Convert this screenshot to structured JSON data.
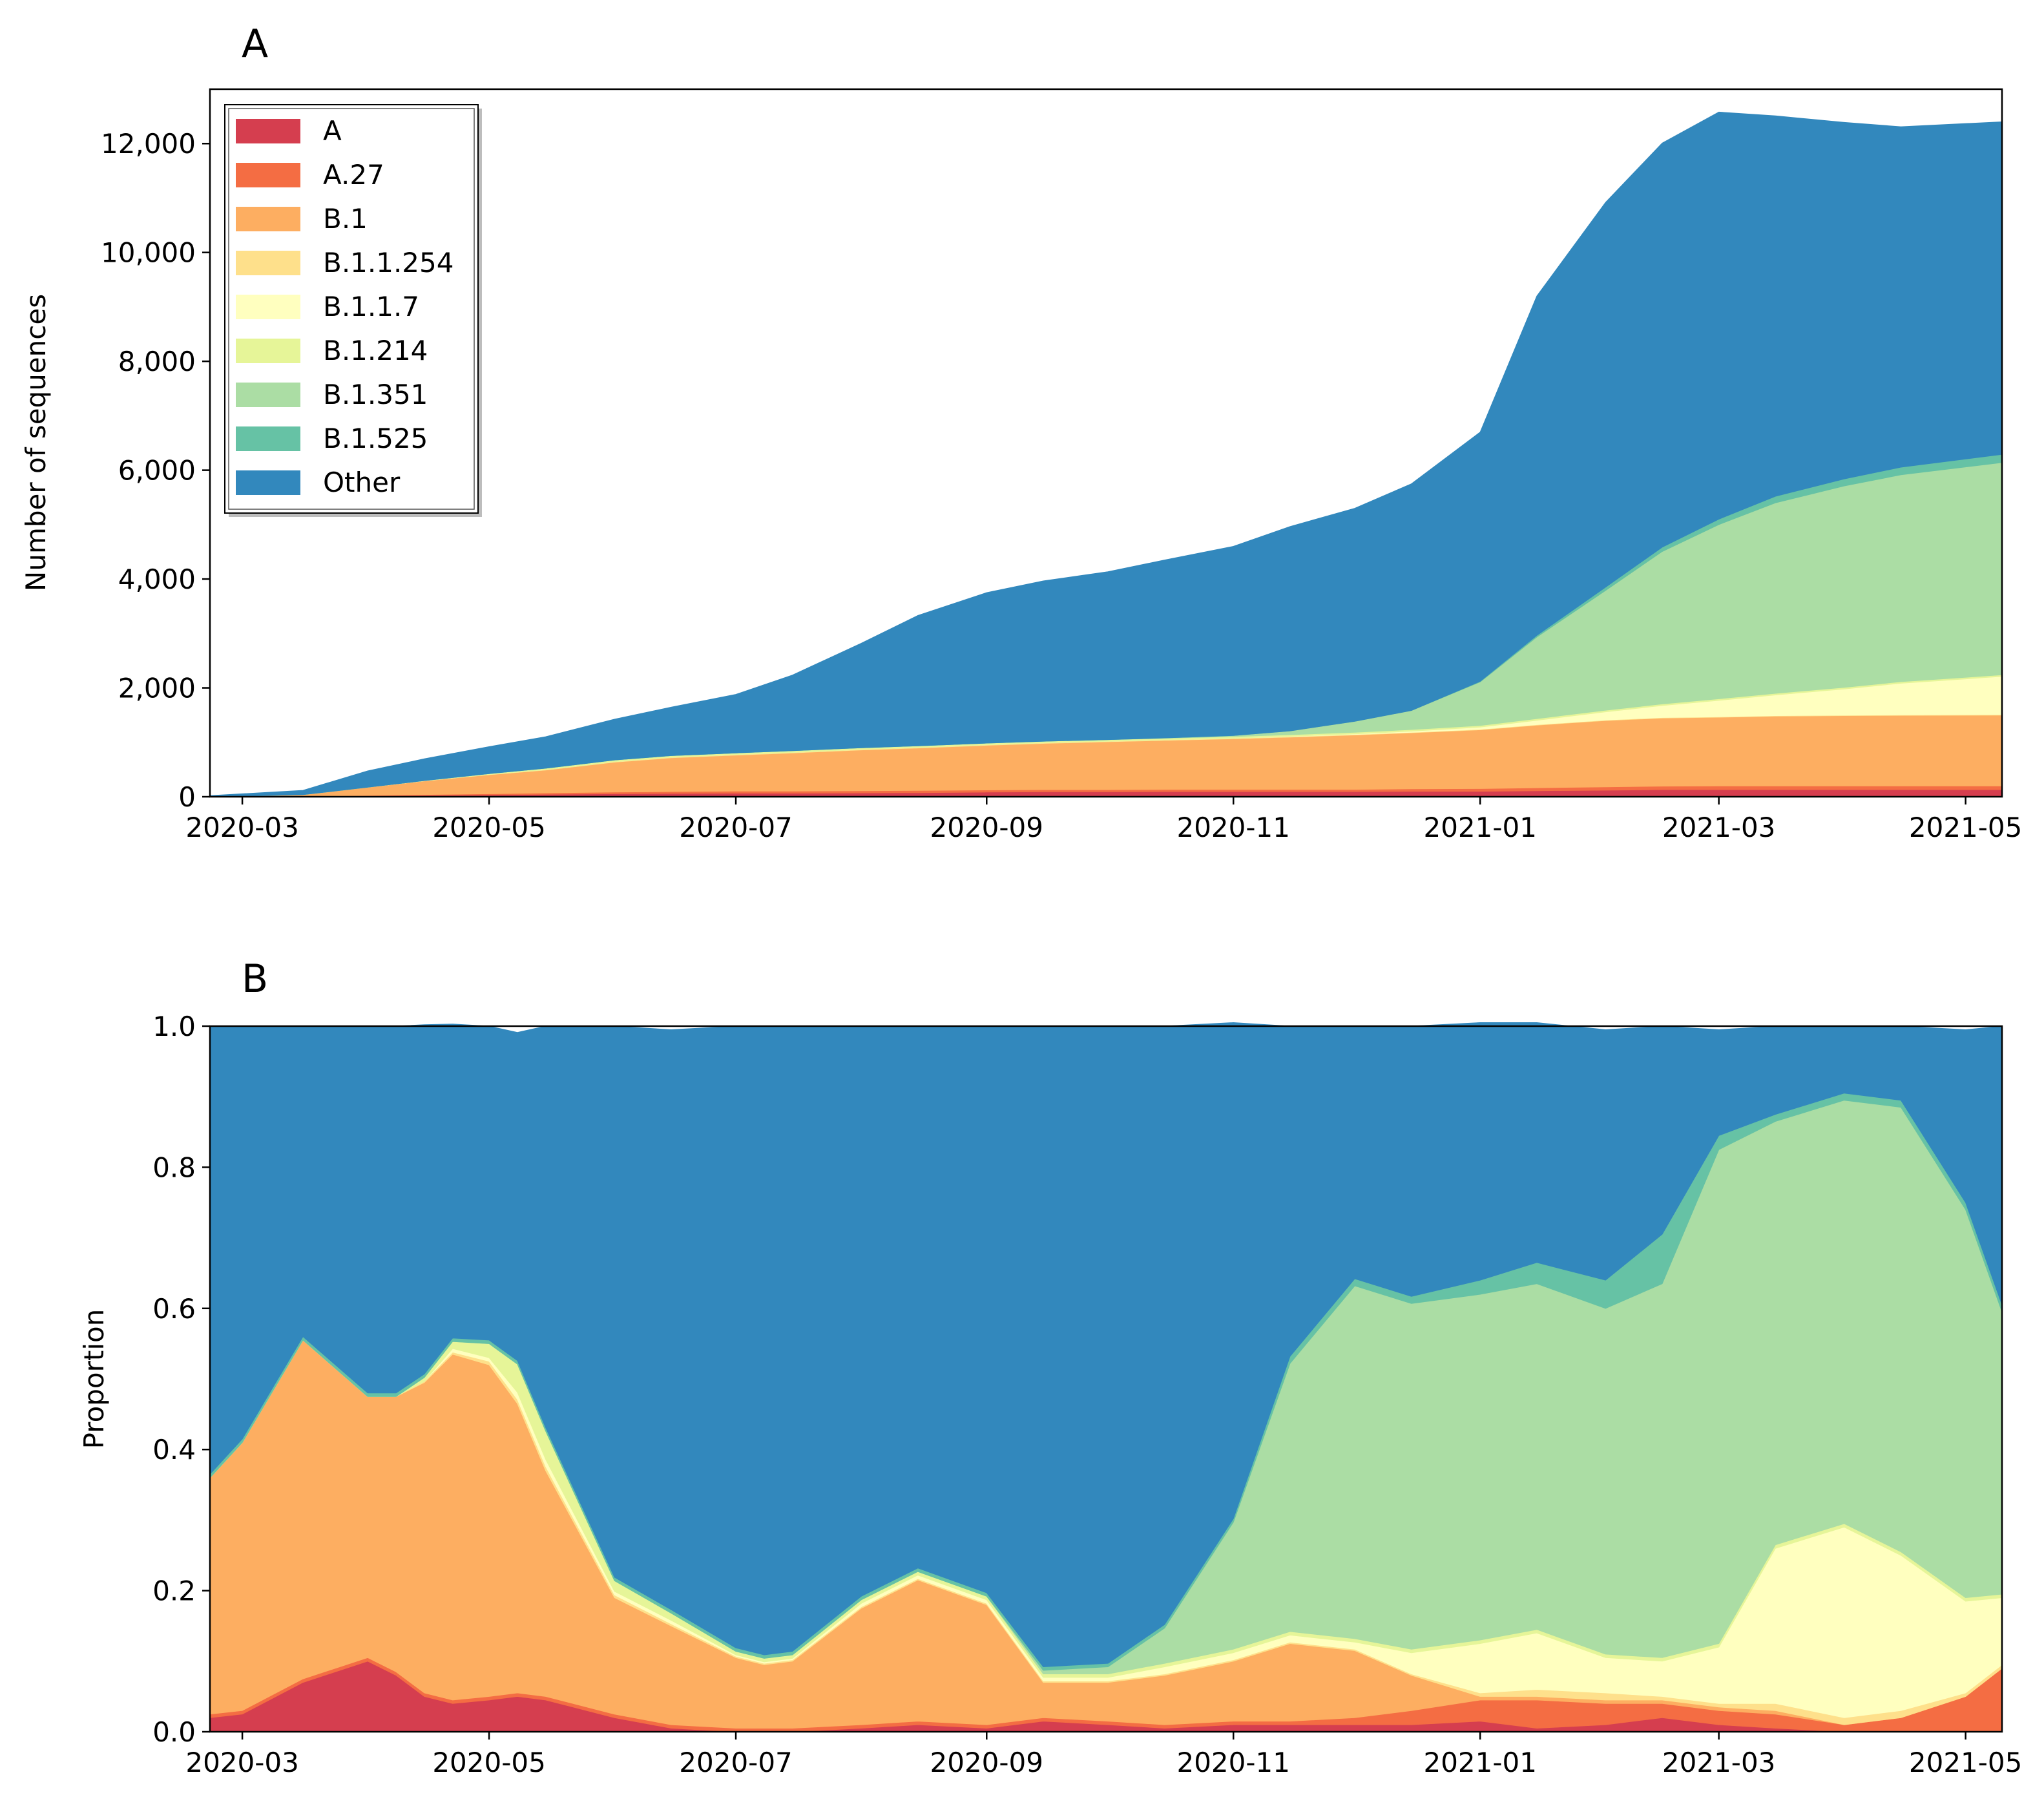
{
  "chart_data": [
    {
      "panel": "A",
      "type": "area",
      "stacked": true,
      "ylabel": "Number of sequences",
      "ylim": [
        0,
        13000
      ],
      "yticks": [
        0,
        2000,
        4000,
        6000,
        8000,
        10000,
        12000
      ],
      "ytick_labels": [
        "0",
        "2,000",
        "4,000",
        "6,000",
        "8,000",
        "10,000",
        "12,000"
      ],
      "xlim": [
        "2020-02-22",
        "2021-05-10"
      ],
      "xticks": [
        "2020-03-01",
        "2020-05-01",
        "2020-07-01",
        "2020-09-01",
        "2020-11-01",
        "2021-01-01",
        "2021-03-01",
        "2021-05-01"
      ],
      "xtick_labels": [
        "2020-03",
        "2020-05",
        "2020-07",
        "2020-09",
        "2020-11",
        "2021-01",
        "2021-03",
        "2021-05"
      ],
      "legend_position": "top-left",
      "x": [
        "2020-02-22",
        "2020-03-16",
        "2020-04-01",
        "2020-04-15",
        "2020-05-01",
        "2020-05-15",
        "2020-06-01",
        "2020-06-15",
        "2020-07-01",
        "2020-07-15",
        "2020-08-01",
        "2020-08-15",
        "2020-09-01",
        "2020-09-15",
        "2020-10-01",
        "2020-10-15",
        "2020-11-01",
        "2020-11-15",
        "2020-12-01",
        "2020-12-15",
        "2021-01-01",
        "2021-01-15",
        "2021-02-01",
        "2021-02-15",
        "2021-03-01",
        "2021-03-15",
        "2021-04-01",
        "2021-04-15",
        "2021-05-10"
      ],
      "series": [
        {
          "name": "A",
          "color": "#d53e4f",
          "values": [
            0,
            5,
            15,
            25,
            35,
            45,
            55,
            60,
            65,
            65,
            70,
            75,
            85,
            90,
            90,
            95,
            95,
            95,
            95,
            100,
            100,
            110,
            120,
            130,
            130,
            130,
            130,
            130,
            130
          ]
        },
        {
          "name": "A.27",
          "color": "#f46d43",
          "values": [
            0,
            3,
            10,
            15,
            20,
            25,
            30,
            35,
            40,
            40,
            40,
            40,
            40,
            40,
            40,
            40,
            40,
            40,
            40,
            45,
            50,
            55,
            60,
            65,
            70,
            70,
            70,
            70,
            70
          ]
        },
        {
          "name": "B.1",
          "color": "#fdae61",
          "values": [
            0,
            30,
            150,
            250,
            350,
            420,
            550,
            620,
            660,
            700,
            750,
            780,
            820,
            850,
            880,
            900,
            930,
            960,
            1000,
            1030,
            1080,
            1150,
            1220,
            1250,
            1260,
            1280,
            1290,
            1295,
            1300
          ]
        },
        {
          "name": "B.1.1.254",
          "color": "#fee08b",
          "values": [
            0,
            0,
            0,
            2,
            5,
            8,
            10,
            10,
            10,
            10,
            10,
            10,
            10,
            10,
            10,
            10,
            10,
            10,
            10,
            10,
            10,
            10,
            10,
            10,
            10,
            10,
            10,
            10,
            10
          ]
        },
        {
          "name": "B.1.1.7",
          "color": "#ffffbf",
          "values": [
            0,
            0,
            0,
            0,
            0,
            0,
            0,
            0,
            0,
            0,
            0,
            0,
            0,
            0,
            0,
            0,
            0,
            5,
            10,
            20,
            40,
            80,
            150,
            220,
            300,
            380,
            480,
            580,
            700
          ]
        },
        {
          "name": "B.1.214",
          "color": "#e6f598",
          "values": [
            0,
            0,
            0,
            5,
            15,
            25,
            30,
            30,
            30,
            30,
            30,
            30,
            30,
            30,
            30,
            30,
            30,
            30,
            30,
            30,
            30,
            30,
            30,
            30,
            30,
            30,
            30,
            30,
            30
          ]
        },
        {
          "name": "B.1.351",
          "color": "#abdda4",
          "values": [
            0,
            0,
            0,
            0,
            0,
            0,
            0,
            0,
            0,
            0,
            0,
            0,
            0,
            0,
            0,
            5,
            20,
            70,
            200,
            350,
            800,
            1500,
            2200,
            2800,
            3200,
            3500,
            3700,
            3800,
            3900
          ]
        },
        {
          "name": "B.1.525",
          "color": "#66c2a5",
          "values": [
            0,
            0,
            0,
            0,
            0,
            0,
            0,
            0,
            0,
            0,
            0,
            0,
            0,
            0,
            0,
            0,
            0,
            0,
            0,
            0,
            10,
            30,
            60,
            80,
            100,
            120,
            130,
            140,
            150
          ]
        },
        {
          "name": "Other",
          "color": "#3288bd",
          "values": [
            20,
            80,
            300,
            400,
            495,
            580,
            750,
            890,
            1075,
            1390,
            1920,
            2395,
            2765,
            2945,
            3085,
            3270,
            3475,
            3755,
            3915,
            4165,
            4580,
            6235,
            7070,
            7425,
            7480,
            6990,
            6550,
            6255,
            6110
          ]
        }
      ]
    },
    {
      "panel": "B",
      "type": "area",
      "stacked": true,
      "ylabel": "Proportion",
      "ylim": [
        0,
        1.0
      ],
      "yticks": [
        0,
        0.2,
        0.4,
        0.6,
        0.8,
        1.0
      ],
      "ytick_labels": [
        "0.0",
        "0.2",
        "0.4",
        "0.6",
        "0.8",
        "1.0"
      ],
      "xlim": [
        "2020-02-22",
        "2021-05-10"
      ],
      "xticks": [
        "2020-03-01",
        "2020-05-01",
        "2020-07-01",
        "2020-09-01",
        "2020-11-01",
        "2021-01-01",
        "2021-03-01",
        "2021-05-01"
      ],
      "xtick_labels": [
        "2020-03",
        "2020-05",
        "2020-07",
        "2020-09",
        "2020-11",
        "2021-01",
        "2021-03",
        "2021-05"
      ],
      "x": [
        "2020-02-22",
        "2020-03-01",
        "2020-03-16",
        "2020-04-01",
        "2020-04-08",
        "2020-04-15",
        "2020-04-22",
        "2020-05-01",
        "2020-05-08",
        "2020-05-15",
        "2020-06-01",
        "2020-06-15",
        "2020-07-01",
        "2020-07-08",
        "2020-07-15",
        "2020-08-01",
        "2020-08-15",
        "2020-09-01",
        "2020-09-15",
        "2020-10-01",
        "2020-10-15",
        "2020-11-01",
        "2020-11-15",
        "2020-12-01",
        "2020-12-15",
        "2021-01-01",
        "2021-01-15",
        "2021-02-01",
        "2021-02-15",
        "2021-03-01",
        "2021-03-15",
        "2021-04-01",
        "2021-04-15",
        "2021-05-01",
        "2021-05-10"
      ],
      "series": [
        {
          "name": "A",
          "color": "#d53e4f",
          "values": [
            0.02,
            0.025,
            0.07,
            0.1,
            0.08,
            0.05,
            0.04,
            0.045,
            0.05,
            0.045,
            0.02,
            0.005,
            0,
            0,
            0,
            0.005,
            0.01,
            0.005,
            0.015,
            0.01,
            0.005,
            0.01,
            0.01,
            0.01,
            0.01,
            0.015,
            0.005,
            0.01,
            0.02,
            0.01,
            0.005,
            0,
            0,
            0,
            0
          ]
        },
        {
          "name": "A.27",
          "color": "#f46d43",
          "values": [
            0.005,
            0.005,
            0.005,
            0.005,
            0.005,
            0.005,
            0.005,
            0.005,
            0.005,
            0.005,
            0.005,
            0.005,
            0.005,
            0.005,
            0.005,
            0.005,
            0.005,
            0.005,
            0.005,
            0.005,
            0.005,
            0.005,
            0.005,
            0.01,
            0.02,
            0.03,
            0.04,
            0.03,
            0.02,
            0.02,
            0.02,
            0.01,
            0.02,
            0.05,
            0.09
          ]
        },
        {
          "name": "B.1",
          "color": "#fdae61",
          "values": [
            0.335,
            0.38,
            0.48,
            0.37,
            0.39,
            0.44,
            0.49,
            0.47,
            0.41,
            0.32,
            0.165,
            0.14,
            0.1,
            0.09,
            0.095,
            0.165,
            0.2,
            0.17,
            0.05,
            0.055,
            0.07,
            0.085,
            0.11,
            0.095,
            0.05,
            0.005,
            0.005,
            0.005,
            0.005,
            0.005,
            0.005,
            0,
            0,
            0,
            0
          ]
        },
        {
          "name": "B.1.1.254",
          "color": "#fee08b",
          "values": [
            0,
            0,
            0,
            0,
            0,
            0.002,
            0.003,
            0.005,
            0.006,
            0.006,
            0.004,
            0.003,
            0.002,
            0.002,
            0.002,
            0.002,
            0.002,
            0.002,
            0.002,
            0.002,
            0.002,
            0.002,
            0.002,
            0.002,
            0.002,
            0.005,
            0.01,
            0.01,
            0.005,
            0.005,
            0.01,
            0.01,
            0.01,
            0.005,
            0.005
          ]
        },
        {
          "name": "B.1.1.7",
          "color": "#ffffbf",
          "values": [
            0,
            0,
            0,
            0,
            0,
            0,
            0.005,
            0.005,
            0.01,
            0.01,
            0.005,
            0.005,
            0.002,
            0.002,
            0.002,
            0.005,
            0.005,
            0.005,
            0.005,
            0.005,
            0.01,
            0.01,
            0.01,
            0.01,
            0.03,
            0.07,
            0.08,
            0.05,
            0.05,
            0.08,
            0.22,
            0.27,
            0.22,
            0.13,
            0.095
          ]
        },
        {
          "name": "B.1.214",
          "color": "#e6f598",
          "values": [
            0,
            0,
            0,
            0,
            0,
            0.005,
            0.01,
            0.02,
            0.04,
            0.04,
            0.015,
            0.01,
            0.005,
            0.005,
            0.005,
            0.005,
            0.005,
            0.005,
            0.005,
            0.005,
            0.005,
            0.005,
            0.005,
            0.005,
            0.005,
            0.005,
            0.005,
            0.005,
            0.005,
            0.005,
            0.005,
            0.005,
            0.005,
            0.005,
            0.005
          ]
        },
        {
          "name": "B.1.351",
          "color": "#abdda4",
          "values": [
            0,
            0,
            0,
            0,
            0,
            0,
            0,
            0,
            0,
            0,
            0,
            0,
            0,
            0,
            0,
            0,
            0,
            0,
            0.005,
            0.01,
            0.05,
            0.18,
            0.38,
            0.5,
            0.49,
            0.49,
            0.49,
            0.49,
            0.53,
            0.7,
            0.6,
            0.6,
            0.63,
            0.55,
            0.4
          ]
        },
        {
          "name": "B.1.525",
          "color": "#66c2a5",
          "values": [
            0.005,
            0.005,
            0.005,
            0.005,
            0.005,
            0.005,
            0.005,
            0.005,
            0.005,
            0.005,
            0.005,
            0.005,
            0.005,
            0.005,
            0.005,
            0.005,
            0.005,
            0.005,
            0.005,
            0.005,
            0.005,
            0.005,
            0.01,
            0.01,
            0.01,
            0.02,
            0.03,
            0.04,
            0.07,
            0.02,
            0.01,
            0.01,
            0.01,
            0.01,
            0.01
          ]
        },
        {
          "name": "Other",
          "color": "#3288bd",
          "values": [
            0.635,
            0.585,
            0.44,
            0.52,
            0.52,
            0.495,
            0.445,
            0.445,
            0.465,
            0.569,
            0.781,
            0.822,
            0.881,
            0.891,
            0.886,
            0.808,
            0.768,
            0.803,
            0.908,
            0.903,
            0.848,
            0.703,
            0.468,
            0.358,
            0.383,
            0.365,
            0.34,
            0.355,
            0.295,
            0.15,
            0.125,
            0.095,
            0.105,
            0.245,
            0.395
          ]
        }
      ]
    }
  ],
  "panels": {
    "a": {
      "letter": "A"
    },
    "b": {
      "letter": "B"
    }
  }
}
